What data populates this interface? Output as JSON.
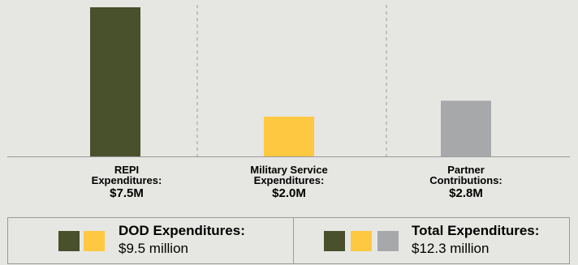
{
  "colors": {
    "background": "#e6e6e3",
    "repi": "#48502c",
    "military": "#ffc841",
    "partner": "#a7a8aa",
    "divider": "#9a9a9a"
  },
  "chart_data": {
    "type": "bar",
    "categories": [
      "REPI Expenditures:",
      "Military Service Expenditures:",
      "Partner Contributions:"
    ],
    "values": [
      7.5,
      2.0,
      2.8
    ],
    "value_labels": [
      "$7.5M",
      "$2.0M",
      "$2.8M"
    ],
    "colors": [
      "#48502c",
      "#ffc841",
      "#a7a8aa"
    ],
    "title": "",
    "xlabel": "",
    "ylabel": "",
    "ylim": [
      0,
      7.6
    ],
    "grid": false,
    "separators": "dashed vertical lines between categories"
  },
  "labels": {
    "repi_name": "REPI\nExpenditures:",
    "repi_value": "$7.5M",
    "military_name": "Military Service\nExpenditures:",
    "military_value": "$2.0M",
    "partner_name": "Partner\nContributions:",
    "partner_value": "$2.8M"
  },
  "summary": {
    "dod_title": "DOD Expenditures:",
    "dod_value": "$9.5 million",
    "total_title": "Total Expenditures:",
    "total_value": "$12.3 million"
  }
}
